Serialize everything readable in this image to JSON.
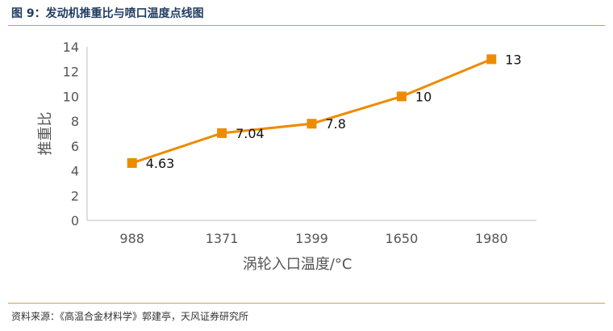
{
  "header": {
    "title": "图 9：发动机推重比与喷口温度点线图"
  },
  "footer": {
    "source": "资料来源：《高温合金材料学》郭建亭，天风证券研究所"
  },
  "chart_data": {
    "type": "line",
    "categories": [
      "988",
      "1371",
      "1399",
      "1650",
      "1980"
    ],
    "series": [
      {
        "values": [
          4.63,
          7.04,
          7.8,
          10,
          13
        ],
        "labels": [
          "4.63",
          "7.04",
          "7.8",
          "10",
          "13"
        ]
      }
    ],
    "xlabel": "涡轮入口温度/°C",
    "ylabel": "推重比",
    "ylim": [
      0,
      14
    ],
    "yticks": [
      "0",
      "2",
      "4",
      "6",
      "8",
      "10",
      "12",
      "14"
    ],
    "grid": false,
    "legend": "none",
    "colors": {
      "line": "#ED8B00",
      "marker": "#ED8B00",
      "axis": "#BFBFBF"
    }
  }
}
